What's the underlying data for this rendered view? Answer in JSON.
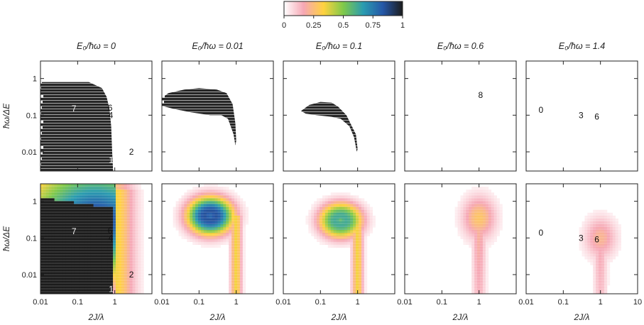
{
  "chart_data": {
    "type": "heatmap",
    "x_axis": {
      "label": "2J/λ",
      "scale": "log",
      "range": [
        0.01,
        10
      ],
      "ticks": [
        "0.01",
        "0.1",
        "1",
        "10"
      ]
    },
    "y_axis": {
      "label": "ħω/ΔE",
      "scale": "log",
      "range": [
        0.003,
        3
      ],
      "ticks": [
        "1",
        "0.1",
        "0.01"
      ]
    },
    "colorbar": {
      "min": 0,
      "max": 1,
      "ticks": [
        "0",
        "0.25",
        "0.5",
        "0.75",
        "1"
      ],
      "colors": [
        "#ffffff",
        "#f6a7b4",
        "#ffd23f",
        "#7fc94a",
        "#2a9cb0",
        "#2557a8",
        "#1c1c1c"
      ]
    },
    "columns": [
      {
        "title": "E₀/ħω = 0",
        "top_labels": [
          {
            "text": "7",
            "x": 0.08,
            "y": 0.15,
            "light": true
          },
          {
            "text": "6",
            "x": 0.75,
            "y": 0.16
          },
          {
            "text": "4",
            "x": 0.78,
            "y": 0.1
          },
          {
            "text": "1",
            "x": 0.8,
            "y": 0.006,
            "light": true
          },
          {
            "text": "2",
            "x": 2.8,
            "y": 0.01
          }
        ],
        "bottom_labels": [
          {
            "text": "7",
            "x": 0.08,
            "y": 0.15,
            "light": true
          },
          {
            "text": "6",
            "x": 0.75,
            "y": 0.16
          },
          {
            "text": "4",
            "x": 0.78,
            "y": 0.1
          },
          {
            "text": "1",
            "x": 0.8,
            "y": 0.004,
            "light": true
          },
          {
            "text": "2",
            "x": 2.8,
            "y": 0.01
          }
        ]
      },
      {
        "title": "E₀/ħω = 0.01",
        "top_labels": [],
        "bottom_labels": []
      },
      {
        "title": "E₀/ħω = 0.1",
        "top_labels": [],
        "bottom_labels": []
      },
      {
        "title": "E₀/ħω = 0.6",
        "top_labels": [
          {
            "text": "8",
            "x": 1.1,
            "y": 0.35
          }
        ],
        "bottom_labels": []
      },
      {
        "title": "E₀/ħω = 1.4",
        "top_labels": [
          {
            "text": "0",
            "x": 0.025,
            "y": 0.14
          },
          {
            "text": "3",
            "x": 0.3,
            "y": 0.1
          },
          {
            "text": "6",
            "x": 0.8,
            "y": 0.09
          }
        ],
        "bottom_labels": [
          {
            "text": "0",
            "x": 0.025,
            "y": 0.14
          },
          {
            "text": "3",
            "x": 0.3,
            "y": 0.1
          },
          {
            "text": "6",
            "x": 0.8,
            "y": 0.09
          }
        ]
      }
    ],
    "top_row_regions": [
      {
        "column": 0,
        "value": 1,
        "extent": [
          [
            0.01,
            0.003
          ],
          [
            0.01,
            0.8
          ],
          [
            0.2,
            0.8
          ],
          [
            0.45,
            0.55
          ],
          [
            0.6,
            0.32
          ],
          [
            0.72,
            0.15
          ],
          [
            0.8,
            0.05
          ],
          [
            0.85,
            0.01
          ],
          [
            0.9,
            0.003
          ]
        ]
      },
      {
        "column": 1,
        "value": 1,
        "extent": [
          [
            0.01,
            0.3
          ],
          [
            0.015,
            0.4
          ],
          [
            0.04,
            0.5
          ],
          [
            0.1,
            0.55
          ],
          [
            0.3,
            0.5
          ],
          [
            0.55,
            0.4
          ],
          [
            0.8,
            0.2
          ],
          [
            0.95,
            0.06
          ],
          [
            1.0,
            0.02
          ],
          [
            0.95,
            0.015
          ],
          [
            0.85,
            0.03
          ],
          [
            0.6,
            0.08
          ],
          [
            0.4,
            0.1
          ],
          [
            0.2,
            0.1
          ],
          [
            0.06,
            0.12
          ],
          [
            0.02,
            0.15
          ],
          [
            0.01,
            0.18
          ]
        ]
      },
      {
        "column": 2,
        "value": 1,
        "extent": [
          [
            0.03,
            0.13
          ],
          [
            0.05,
            0.19
          ],
          [
            0.1,
            0.23
          ],
          [
            0.2,
            0.22
          ],
          [
            0.3,
            0.17
          ],
          [
            0.5,
            0.1
          ],
          [
            0.7,
            0.05
          ],
          [
            0.9,
            0.03
          ],
          [
            1.0,
            0.012
          ],
          [
            0.95,
            0.01
          ],
          [
            0.8,
            0.025
          ],
          [
            0.6,
            0.05
          ],
          [
            0.35,
            0.08
          ],
          [
            0.2,
            0.09
          ],
          [
            0.08,
            0.1
          ],
          [
            0.04,
            0.11
          ]
        ]
      }
    ],
    "bottom_row_fields": [
      {
        "column": 0,
        "kind": "filled",
        "peak": 1.0,
        "core": {
          "x": 0.3,
          "y": 0.3
        },
        "edge_x": 1.0
      },
      {
        "column": 1,
        "kind": "ring",
        "peak": 0.85,
        "center": {
          "x": 0.2,
          "y": 0.4
        },
        "spread": 1.0
      },
      {
        "column": 2,
        "kind": "ring",
        "peak": 0.62,
        "center": {
          "x": 0.35,
          "y": 0.3
        },
        "spread": 0.85
      },
      {
        "column": 3,
        "kind": "blob",
        "peak": 0.28,
        "center": {
          "x": 1.0,
          "y": 0.35
        },
        "spread": 0.6
      },
      {
        "column": 4,
        "kind": "blob",
        "peak": 0.22,
        "center": {
          "x": 1.0,
          "y": 0.1
        },
        "spread": 0.55
      }
    ]
  }
}
